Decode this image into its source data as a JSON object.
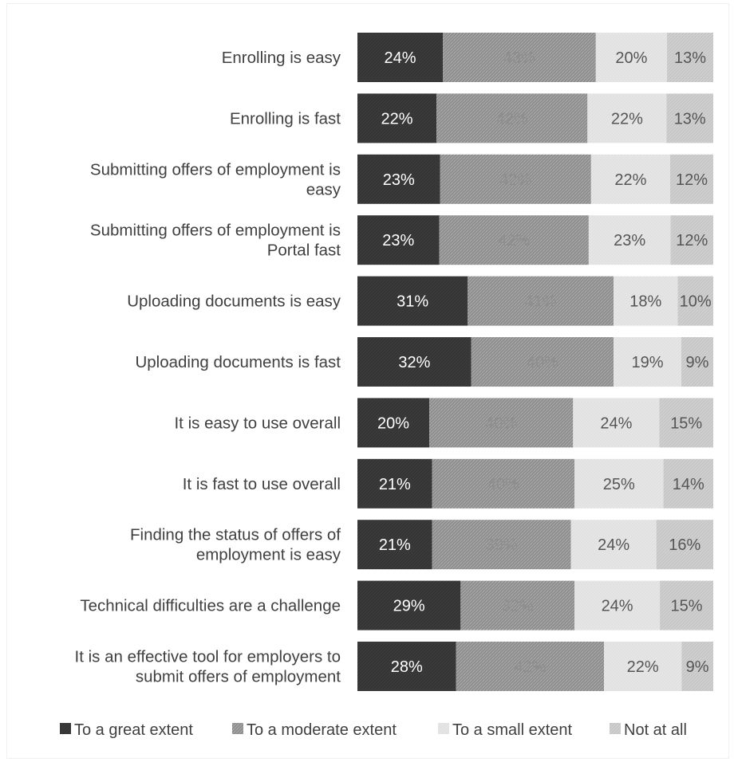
{
  "chart_data": {
    "type": "bar",
    "orientation": "horizontal",
    "stacked": "100%",
    "categories": [
      "Enrolling is easy",
      "Enrolling is fast",
      "Submitting offers of employment is easy",
      "Submitting offers of employment is Portal fast",
      "Uploading documents is easy",
      "Uploading documents is fast",
      "It is easy to use overall",
      "It is fast to use overall",
      "Finding the status of offers of employment is easy",
      "Technical difficulties are a challenge",
      "It is an effective tool for employers to submit offers of employment"
    ],
    "category_lines": [
      [
        "Enrolling is easy"
      ],
      [
        "Enrolling is fast"
      ],
      [
        "Submitting offers of employment is",
        "easy"
      ],
      [
        "Submitting offers of employment is",
        "Portal fast"
      ],
      [
        "Uploading documents is easy"
      ],
      [
        "Uploading documents is fast"
      ],
      [
        "It is easy to use overall"
      ],
      [
        "It is fast to use overall"
      ],
      [
        "Finding the status of offers of",
        "employment is easy"
      ],
      [
        "Technical difficulties are a challenge"
      ],
      [
        "It is an effective tool for employers to",
        "submit offers of employment"
      ]
    ],
    "series": [
      {
        "name": "To a great extent",
        "values": [
          24,
          22,
          23,
          23,
          31,
          32,
          20,
          21,
          21,
          29,
          28
        ],
        "color": "#3a3a3a",
        "label_color": "#ffffff"
      },
      {
        "name": "To a moderate extent",
        "values": [
          43,
          42,
          42,
          42,
          41,
          40,
          40,
          40,
          39,
          32,
          42
        ],
        "color": "#8e8e8e",
        "label_color": "#8e8e8e"
      },
      {
        "name": "To a small extent",
        "values": [
          20,
          22,
          22,
          23,
          18,
          19,
          24,
          25,
          24,
          24,
          22
        ],
        "color": "#e1e1e1",
        "label_color": "#555555"
      },
      {
        "name": "Not at all",
        "values": [
          13,
          13,
          12,
          12,
          10,
          9,
          15,
          14,
          16,
          15,
          9
        ],
        "color": "#c6c6c6",
        "label_color": "#555555"
      }
    ],
    "value_suffix": "%",
    "legend_position": "bottom",
    "grid": false
  }
}
